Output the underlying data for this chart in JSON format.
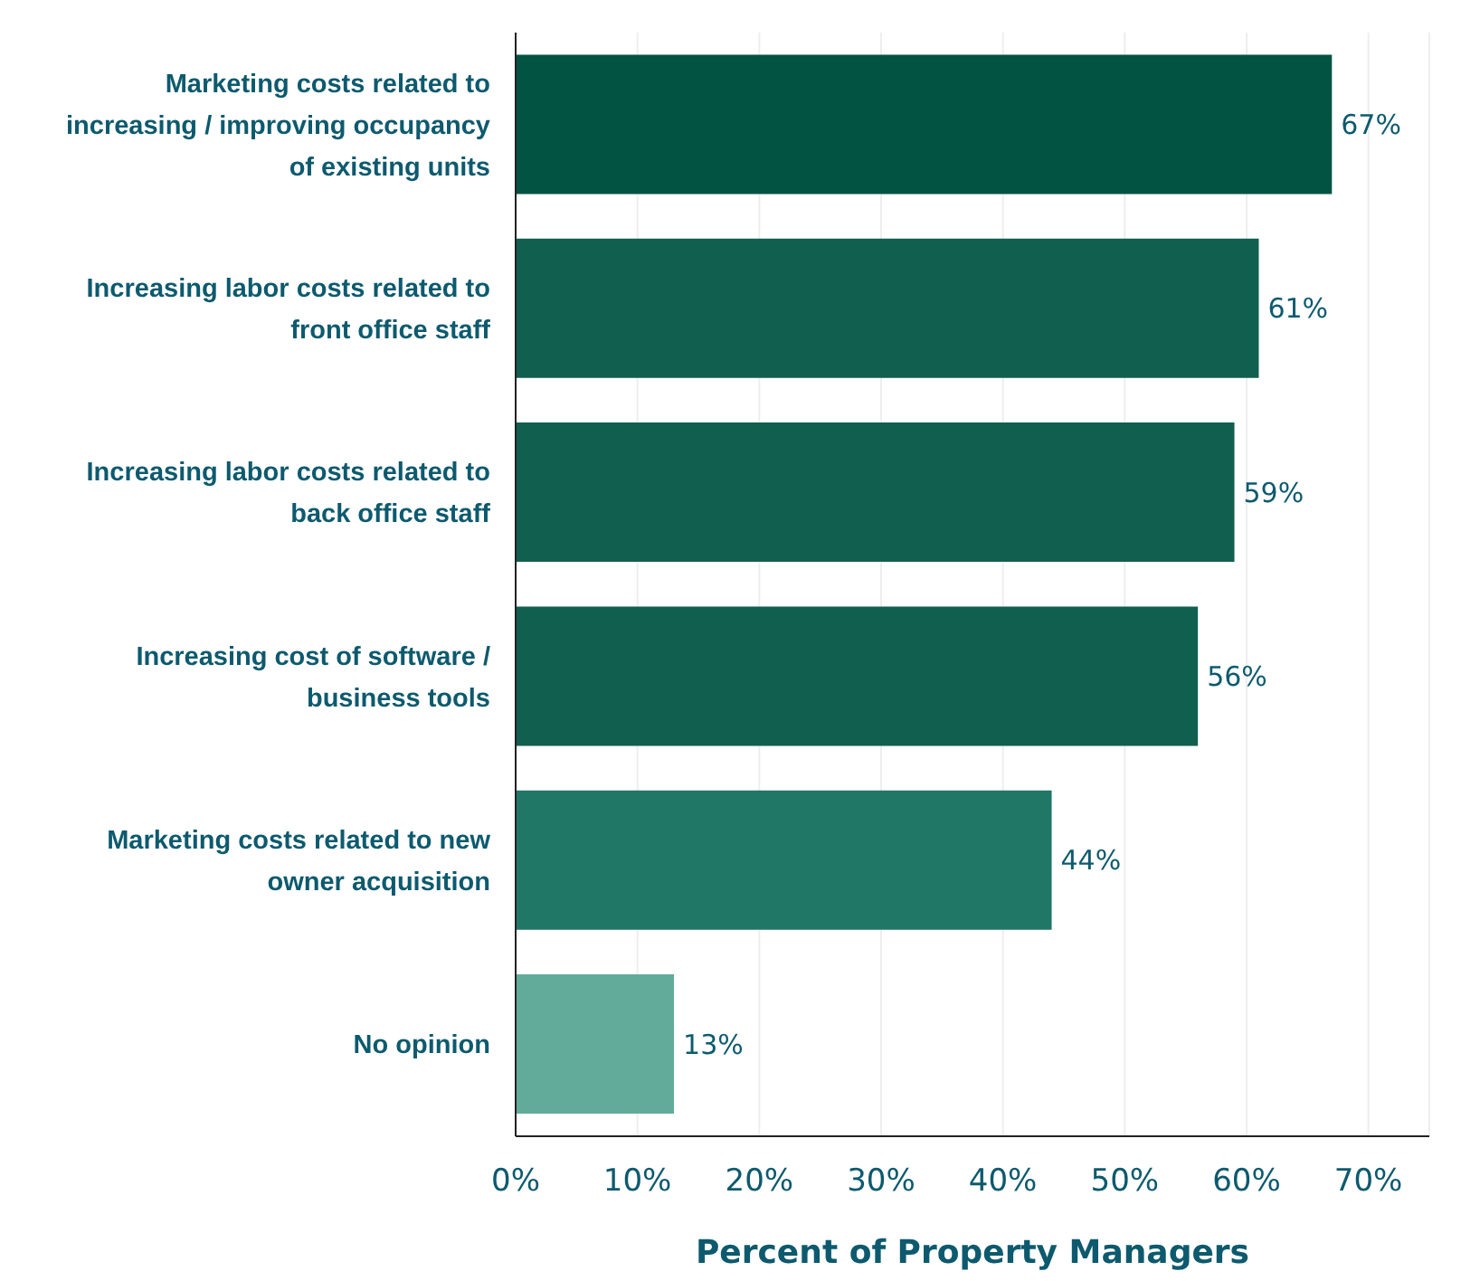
{
  "chart_data": {
    "type": "bar",
    "orientation": "horizontal",
    "xlabel": "Percent of Property Managers",
    "categories": [
      "Marketing costs related to increasing / improving occupancy of existing units",
      "Increasing labor costs related to front office staff",
      "Increasing labor costs related to back office staff",
      "Increasing cost of software / business tools",
      "Marketing costs related to new owner acquisition",
      "No opinion"
    ],
    "values": [
      67,
      61,
      59,
      56,
      44,
      13
    ],
    "colors": [
      "#035343",
      "#115f4f",
      "#115f4f",
      "#115f4f",
      "#207766",
      "#62ab9b"
    ],
    "value_labels": [
      "67%",
      "61%",
      "59%",
      "56%",
      "44%",
      "13%"
    ],
    "xlim": [
      0,
      75
    ],
    "xticks": [
      {
        "value": 0,
        "label": "0%"
      },
      {
        "value": 10,
        "label": "10%"
      },
      {
        "value": 20,
        "label": "20%"
      },
      {
        "value": 30,
        "label": "30%"
      },
      {
        "value": 40,
        "label": "40%"
      },
      {
        "value": 50,
        "label": "50%"
      },
      {
        "value": 60,
        "label": "60%"
      },
      {
        "value": 70,
        "label": "70%"
      }
    ],
    "grid": "x"
  }
}
